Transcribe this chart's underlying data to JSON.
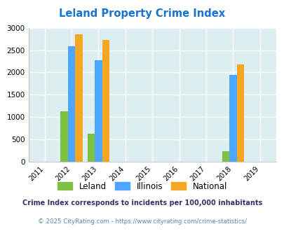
{
  "title": "Leland Property Crime Index",
  "title_color": "#1874cd",
  "years": [
    2011,
    2012,
    2013,
    2014,
    2015,
    2016,
    2017,
    2018,
    2019
  ],
  "bar_data": {
    "2012": {
      "leland": 1130,
      "illinois": 2580,
      "national": 2850
    },
    "2013": {
      "leland": 630,
      "illinois": 2275,
      "national": 2730
    },
    "2018": {
      "leland": 235,
      "illinois": 1940,
      "national": 2185
    }
  },
  "colors": {
    "leland": "#7dc142",
    "illinois": "#4da6ff",
    "national": "#f5a623"
  },
  "ylim": [
    0,
    3000
  ],
  "yticks": [
    0,
    500,
    1000,
    1500,
    2000,
    2500,
    3000
  ],
  "background_color": "#ddeef0",
  "grid_color": "#c8dde0",
  "legend_labels": [
    "Leland",
    "Illinois",
    "National"
  ],
  "footnote1": "Crime Index corresponds to incidents per 100,000 inhabitants",
  "footnote2": "© 2025 CityRating.com - https://www.cityrating.com/crime-statistics/",
  "footnote1_color": "#333366",
  "footnote2_color": "#5588aa"
}
